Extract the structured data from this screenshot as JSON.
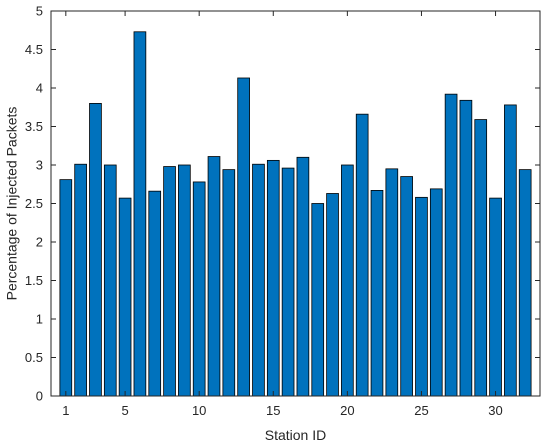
{
  "chart_data": {
    "type": "bar",
    "xlabel": "Station ID",
    "ylabel": "Percentage of Injected Packets",
    "xlim": [
      0,
      33
    ],
    "ylim": [
      0,
      5
    ],
    "xticks": [
      1,
      5,
      10,
      15,
      20,
      25,
      30
    ],
    "yticks": [
      0,
      0.5,
      1,
      1.5,
      2,
      2.5,
      3,
      3.5,
      4,
      4.5,
      5
    ],
    "ytick_labels": [
      "0",
      "0.5",
      "1",
      "1.5",
      "2",
      "2.5",
      "3",
      "3.5",
      "4",
      "4.5",
      "5"
    ],
    "grid": false,
    "box": true,
    "bar_color": "#0072BD",
    "categories": [
      1,
      2,
      3,
      4,
      5,
      6,
      7,
      8,
      9,
      10,
      11,
      12,
      13,
      14,
      15,
      16,
      17,
      18,
      19,
      20,
      21,
      22,
      23,
      24,
      25,
      26,
      27,
      28,
      29,
      30,
      31,
      32,
      33
    ],
    "values": [
      2.81,
      3.01,
      3.8,
      3.0,
      2.57,
      4.73,
      2.66,
      2.98,
      3.0,
      2.78,
      3.11,
      2.94,
      4.13,
      3.01,
      3.06,
      2.96,
      3.1,
      2.5,
      2.63,
      3.0,
      3.66,
      2.67,
      2.95,
      2.85,
      2.58,
      2.69,
      3.92,
      3.84,
      3.59,
      2.57,
      3.78,
      2.94,
      0.0
    ]
  }
}
